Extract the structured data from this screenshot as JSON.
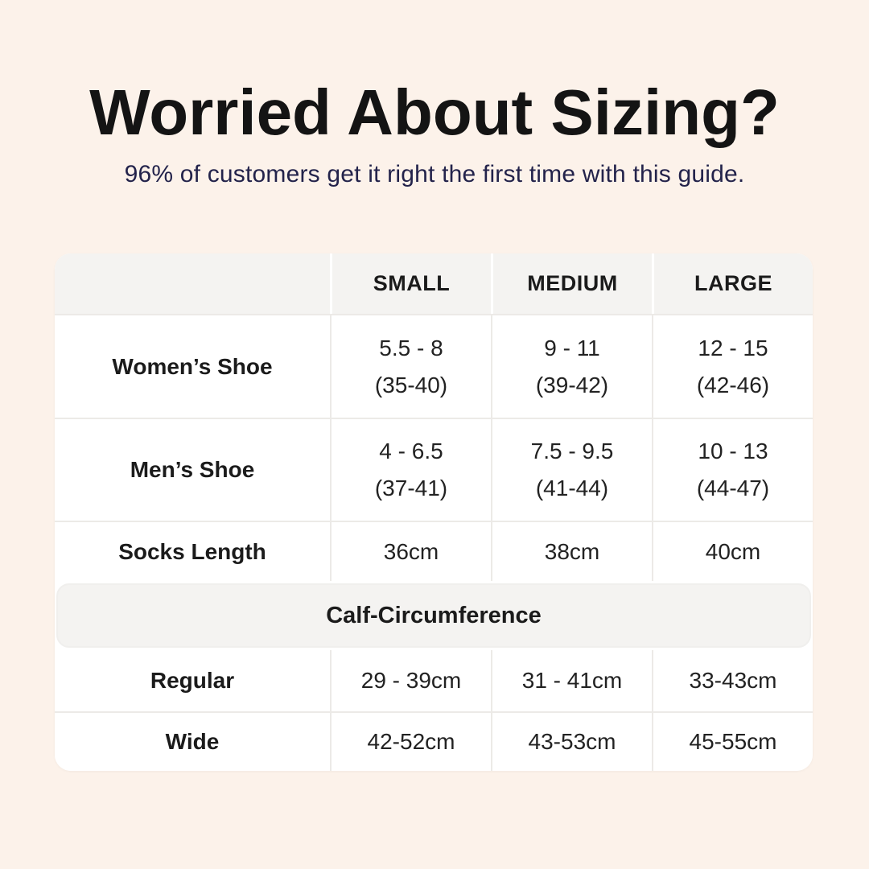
{
  "colors": {
    "background": "#FCF2EA",
    "card": "#FFFFFF",
    "header_band": "#F4F3F1",
    "grid_border": "#ECEAE7",
    "title_text": "#141414",
    "subtitle_text": "#23234B",
    "body_text": "#222222"
  },
  "header": {
    "title": "Worried About Sizing?",
    "subtitle": "96% of customers get it right the first time with this guide."
  },
  "table": {
    "columns": [
      "",
      "SMALL",
      "MEDIUM",
      "LARGE"
    ],
    "rows": [
      {
        "label": "Women’s Shoe",
        "cells": [
          [
            "5.5 - 8",
            "(35-40)"
          ],
          [
            "9 - 11",
            "(39-42)"
          ],
          [
            "12 - 15",
            "(42-46)"
          ]
        ]
      },
      {
        "label": "Men’s Shoe",
        "cells": [
          [
            "4 - 6.5",
            "(37-41)"
          ],
          [
            "7.5 - 9.5",
            "(41-44)"
          ],
          [
            "10 - 13",
            "(44-47)"
          ]
        ]
      },
      {
        "label": "Socks Length",
        "cells": [
          [
            "36cm"
          ],
          [
            "38cm"
          ],
          [
            "40cm"
          ]
        ]
      }
    ],
    "section": {
      "header": "Calf-Circumference",
      "rows": [
        {
          "label": "Regular",
          "cells": [
            [
              "29 - 39cm"
            ],
            [
              "31 - 41cm"
            ],
            [
              "33-43cm"
            ]
          ]
        },
        {
          "label": "Wide",
          "cells": [
            [
              "42-52cm"
            ],
            [
              "43-53cm"
            ],
            [
              "45-55cm"
            ]
          ]
        }
      ]
    }
  },
  "chart_data": {
    "type": "table",
    "title": "Worried About Sizing?",
    "subtitle": "96% of customers get it right the first time with this guide.",
    "columns": [
      "",
      "SMALL",
      "MEDIUM",
      "LARGE"
    ],
    "rows": [
      [
        "Women’s Shoe",
        "5.5 - 8 (35-40)",
        "9 - 11 (39-42)",
        "12 - 15 (42-46)"
      ],
      [
        "Men’s Shoe",
        "4 - 6.5 (37-41)",
        "7.5 - 9.5 (41-44)",
        "10 - 13 (44-47)"
      ],
      [
        "Socks Length",
        "36cm",
        "38cm",
        "40cm"
      ],
      [
        "Calf-Circumference",
        "",
        "",
        ""
      ],
      [
        "Regular",
        "29 - 39cm",
        "31 - 41cm",
        "33-43cm"
      ],
      [
        "Wide",
        "42-52cm",
        "43-53cm",
        "45-55cm"
      ]
    ],
    "notes": "Row 'Calf-Circumference' is a full-width section header band; shoe-size cells show US sizes with EU sizes in parentheses"
  }
}
